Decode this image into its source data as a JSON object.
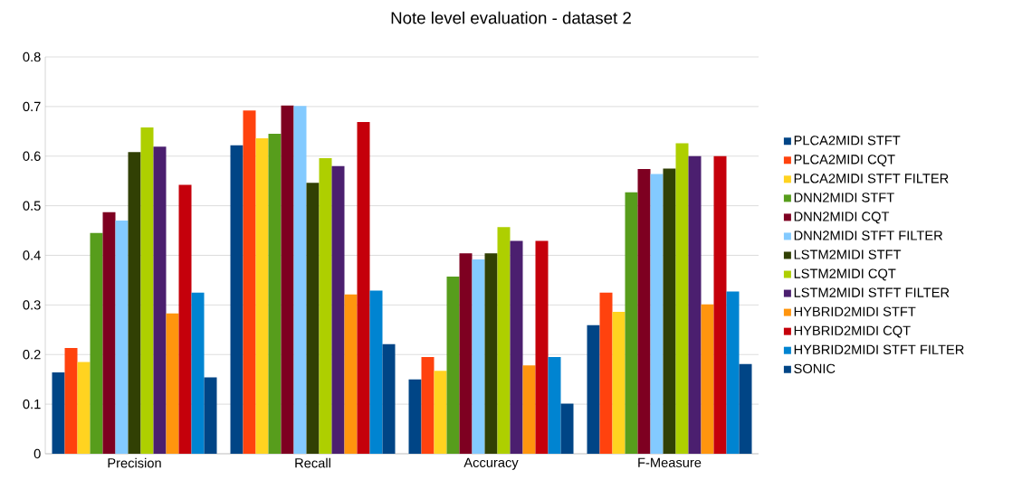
{
  "chart_data": {
    "type": "bar",
    "title": "Note level evaluation - dataset 2",
    "categories": [
      "Precision",
      "Recall",
      "Accuracy",
      "F-Measure"
    ],
    "series": [
      {
        "name": "PLCA2MIDI STFT",
        "color": "#004586",
        "values": [
          0.164,
          0.622,
          0.15,
          0.259
        ]
      },
      {
        "name": "PLCA2MIDI CQT",
        "color": "#ff420e",
        "values": [
          0.213,
          0.692,
          0.195,
          0.325
        ]
      },
      {
        "name": "PLCA2MIDI STFT FILTER",
        "color": "#ffd320",
        "values": [
          0.185,
          0.636,
          0.167,
          0.286
        ]
      },
      {
        "name": "DNN2MIDI STFT",
        "color": "#579d1c",
        "values": [
          0.445,
          0.645,
          0.357,
          0.527
        ]
      },
      {
        "name": "DNN2MIDI CQT",
        "color": "#7e0021",
        "values": [
          0.487,
          0.702,
          0.404,
          0.574
        ]
      },
      {
        "name": "DNN2MIDI STFT FILTER",
        "color": "#83caff",
        "values": [
          0.47,
          0.701,
          0.392,
          0.564
        ]
      },
      {
        "name": "LSTM2MIDI STFT",
        "color": "#314004",
        "values": [
          0.608,
          0.546,
          0.404,
          0.575
        ]
      },
      {
        "name": "LSTM2MIDI CQT",
        "color": "#aecf00",
        "values": [
          0.658,
          0.596,
          0.457,
          0.626
        ]
      },
      {
        "name": "LSTM2MIDI STFT FILTER",
        "color": "#4b1f6f",
        "values": [
          0.619,
          0.58,
          0.429,
          0.6
        ]
      },
      {
        "name": "HYBRID2MIDI STFT",
        "color": "#ff950e",
        "values": [
          0.283,
          0.321,
          0.178,
          0.301
        ]
      },
      {
        "name": "HYBRID2MIDI CQT",
        "color": "#c5000b",
        "values": [
          0.542,
          0.669,
          0.429,
          0.6
        ]
      },
      {
        "name": "HYBRID2MIDI STFT FILTER",
        "color": "#0084d1",
        "values": [
          0.325,
          0.329,
          0.195,
          0.327
        ]
      },
      {
        "name": "SONIC",
        "color": "#004586",
        "values": [
          0.154,
          0.221,
          0.101,
          0.181
        ]
      }
    ],
    "ylim": [
      0,
      0.8
    ],
    "yticks": [
      0,
      0.1,
      0.2,
      0.3,
      0.4,
      0.5,
      0.6,
      0.7,
      0.8
    ],
    "grid": "y",
    "legend": "right"
  }
}
